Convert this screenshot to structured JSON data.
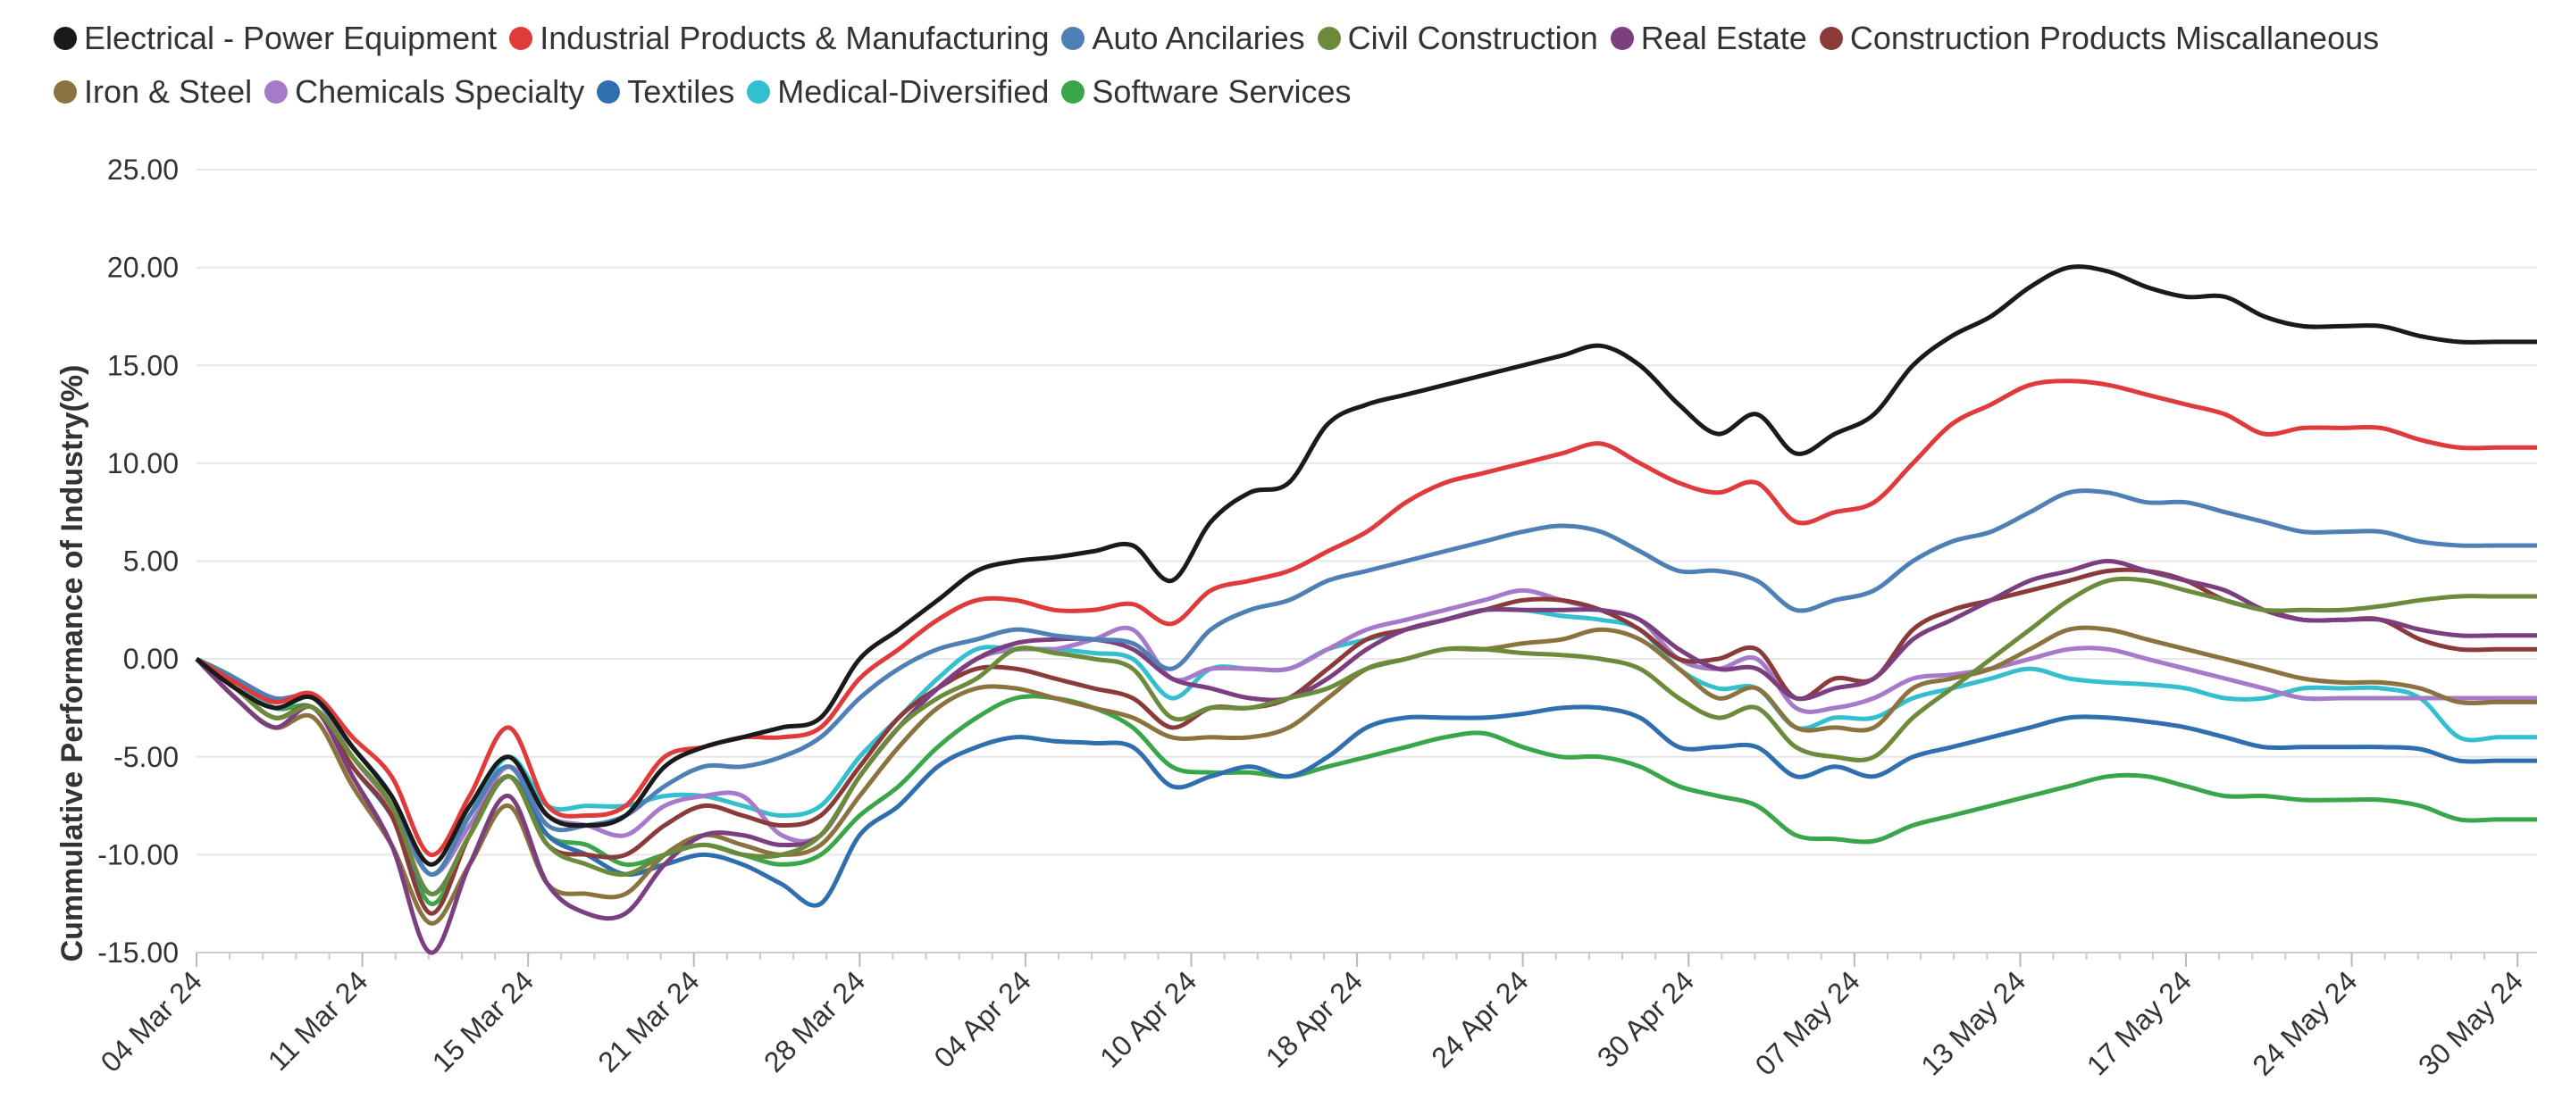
{
  "chart_data": {
    "type": "line",
    "title": "",
    "xlabel": "",
    "ylabel": "Cummulative Performance of Industry(%)",
    "ylim": [
      -15,
      25
    ],
    "yticks": [
      "25.00",
      "20.00",
      "15.00",
      "10.00",
      "5.00",
      "0.00",
      "-5.00",
      "-10.00",
      "-15.00"
    ],
    "ytick_values": [
      25,
      20,
      15,
      10,
      5,
      0,
      -5,
      -10,
      -15
    ],
    "x_range": [
      0,
      30
    ],
    "xtick_labels": [
      "04 Mar 24",
      "11 Mar 24",
      "15 Mar 24",
      "21 Mar 24",
      "28 Mar 24",
      "04 Apr 24",
      "10 Apr 24",
      "18 Apr 24",
      "24 Apr 24",
      "30 Apr 24",
      "07 May 24",
      "13 May 24",
      "17 May 24",
      "24 May 24",
      "30 May 24"
    ],
    "xtick_positions": [
      0,
      2.125,
      4.25,
      6.375,
      8.5,
      10.625,
      12.75,
      14.875,
      17,
      19.125,
      21.25,
      23.375,
      25.5,
      27.625,
      29.75
    ],
    "legend_position": "top",
    "x": [
      0,
      0.5,
      1,
      1.5,
      2,
      2.5,
      3,
      3.5,
      4,
      4.5,
      5,
      5.5,
      6,
      6.5,
      7,
      7.5,
      8,
      8.5,
      9,
      9.5,
      10,
      10.5,
      11,
      11.5,
      12,
      12.5,
      13,
      13.5,
      14,
      14.5,
      15,
      15.5,
      16,
      16.5,
      17,
      17.5,
      18,
      18.5,
      19,
      19.5,
      20,
      20.5,
      21,
      21.5,
      22,
      22.5,
      23,
      23.5,
      24,
      24.5,
      25,
      25.5,
      26,
      26.5,
      27,
      27.5,
      28,
      28.5,
      29,
      29.5,
      30
    ],
    "series": [
      {
        "name": "Electrical - Power Equipment",
        "color": "#1a1a1a",
        "values": [
          0,
          -1.5,
          -2.5,
          -2.0,
          -4.5,
          -7.0,
          -10.5,
          -7.5,
          -5.0,
          -8.0,
          -8.5,
          -8.0,
          -5.5,
          -4.5,
          -4.0,
          -3.5,
          -3.0,
          0,
          1.5,
          3.0,
          4.5,
          5.0,
          5.2,
          5.5,
          5.8,
          4.0,
          7.0,
          8.5,
          9.0,
          12.0,
          13.0,
          13.5,
          14.0,
          14.5,
          15.0,
          15.5,
          16.0,
          15.0,
          13.0,
          11.5,
          12.5,
          10.5,
          11.5,
          12.5,
          15.0,
          16.5,
          17.5,
          19.0,
          20.0,
          19.8,
          19.0,
          18.5,
          18.5,
          17.5,
          17.0,
          17.0,
          17.0,
          16.5,
          16.2,
          16.2,
          16.2
        ]
      },
      {
        "name": "Industrial Products & Manufacturing",
        "color": "#e03a3a",
        "values": [
          0,
          -1.2,
          -2.2,
          -1.8,
          -4.0,
          -6.0,
          -10.0,
          -7.0,
          -3.5,
          -7.5,
          -8.0,
          -7.5,
          -5.0,
          -4.5,
          -4.0,
          -4.0,
          -3.5,
          -1.0,
          0.5,
          2.0,
          3.0,
          3.0,
          2.5,
          2.5,
          2.8,
          1.8,
          3.5,
          4.0,
          4.5,
          5.5,
          6.5,
          8.0,
          9.0,
          9.5,
          10.0,
          10.5,
          11.0,
          10.0,
          9.0,
          8.5,
          9.0,
          7.0,
          7.5,
          8.0,
          10.0,
          12.0,
          13.0,
          14.0,
          14.2,
          14.0,
          13.5,
          13.0,
          12.5,
          11.5,
          11.8,
          11.8,
          11.8,
          11.2,
          10.8,
          10.8,
          10.8
        ]
      },
      {
        "name": "Auto Ancilaries",
        "color": "#4e7fb5",
        "values": [
          0,
          -1.0,
          -2.0,
          -2.0,
          -4.5,
          -7.0,
          -11.0,
          -8.0,
          -5.5,
          -8.5,
          -8.5,
          -8.0,
          -6.5,
          -5.5,
          -5.5,
          -5.0,
          -4.0,
          -2.0,
          -0.5,
          0.5,
          1.0,
          1.5,
          1.2,
          1.0,
          0.8,
          -0.5,
          1.5,
          2.5,
          3.0,
          4.0,
          4.5,
          5.0,
          5.5,
          6.0,
          6.5,
          6.8,
          6.5,
          5.5,
          4.5,
          4.5,
          4.0,
          2.5,
          3.0,
          3.5,
          5.0,
          6.0,
          6.5,
          7.5,
          8.5,
          8.5,
          8.0,
          8.0,
          7.5,
          7.0,
          6.5,
          6.5,
          6.5,
          6.0,
          5.8,
          5.8,
          5.8
        ]
      },
      {
        "name": "Civil Construction",
        "color": "#6b8a3a",
        "values": [
          0,
          -1.5,
          -3.0,
          -2.5,
          -5.0,
          -7.5,
          -12.0,
          -9.0,
          -6.0,
          -9.5,
          -10.5,
          -11.0,
          -10.0,
          -9.5,
          -10.0,
          -10.0,
          -9.0,
          -6.0,
          -3.5,
          -2.0,
          -1.0,
          0.5,
          0.3,
          0,
          -0.5,
          -3.0,
          -2.5,
          -2.5,
          -2.0,
          -1.5,
          -0.5,
          0,
          0.5,
          0.5,
          0.3,
          0.2,
          0,
          -0.5,
          -2.0,
          -3.0,
          -2.5,
          -4.5,
          -5.0,
          -5.0,
          -3.0,
          -1.5,
          0,
          1.5,
          3.0,
          4.0,
          4.0,
          3.5,
          3.0,
          2.5,
          2.5,
          2.5,
          2.7,
          3.0,
          3.2,
          3.2,
          3.2
        ]
      },
      {
        "name": "Real Estate",
        "color": "#7b3f7f",
        "values": [
          0,
          -2.0,
          -3.5,
          -2.5,
          -6.0,
          -9.5,
          -15.0,
          -10.5,
          -7.0,
          -11.5,
          -13.0,
          -13.0,
          -10.5,
          -9.0,
          -9.0,
          -9.5,
          -9.0,
          -6.0,
          -3.5,
          -1.5,
          0,
          0.8,
          1.0,
          1.0,
          0.5,
          -1.0,
          -1.5,
          -2.0,
          -2.0,
          -1.0,
          0.5,
          1.5,
          2.0,
          2.5,
          2.5,
          2.5,
          2.5,
          2.0,
          0.5,
          -0.5,
          -0.5,
          -2.0,
          -1.5,
          -1.0,
          1.0,
          2.0,
          3.0,
          4.0,
          4.5,
          5.0,
          4.5,
          4.0,
          3.5,
          2.5,
          2.0,
          2.0,
          2.0,
          1.5,
          1.2,
          1.2,
          1.2
        ]
      },
      {
        "name": "Construction Products Miscallaneous",
        "color": "#8b3a3a",
        "values": [
          0,
          -1.5,
          -3.0,
          -2.5,
          -5.5,
          -8.0,
          -13.0,
          -9.0,
          -6.0,
          -9.5,
          -10.0,
          -10.0,
          -8.5,
          -7.5,
          -8.0,
          -8.5,
          -8.0,
          -5.5,
          -3.0,
          -1.5,
          -0.5,
          -0.5,
          -1.0,
          -1.5,
          -2.0,
          -3.5,
          -2.5,
          -2.5,
          -2.0,
          -0.5,
          1.0,
          1.5,
          2.0,
          2.5,
          3.0,
          3.0,
          2.5,
          1.5,
          0,
          0,
          0.5,
          -2.0,
          -1.0,
          -1.0,
          1.5,
          2.5,
          3.0,
          3.5,
          4.0,
          4.5,
          4.5,
          4.0,
          3.0,
          2.5,
          2.0,
          2.0,
          2.0,
          1.0,
          0.5,
          0.5,
          0.5
        ]
      },
      {
        "name": "Iron & Steel",
        "color": "#8b7340",
        "values": [
          0,
          -2.0,
          -3.5,
          -3.0,
          -6.5,
          -9.5,
          -13.5,
          -10.5,
          -7.5,
          -11.5,
          -12.0,
          -12.0,
          -10.0,
          -9.0,
          -9.5,
          -10.0,
          -9.5,
          -7.0,
          -4.5,
          -2.5,
          -1.5,
          -1.5,
          -2.0,
          -2.5,
          -3.0,
          -4.0,
          -4.0,
          -4.0,
          -3.5,
          -2.0,
          -0.5,
          0,
          0.5,
          0.5,
          0.8,
          1.0,
          1.5,
          1.0,
          -0.5,
          -2.0,
          -1.5,
          -3.5,
          -3.5,
          -3.5,
          -1.5,
          -1.0,
          -0.5,
          0.5,
          1.5,
          1.5,
          1.0,
          0.5,
          0,
          -0.5,
          -1.0,
          -1.2,
          -1.2,
          -1.5,
          -2.2,
          -2.2,
          -2.2
        ]
      },
      {
        "name": "Chemicals Specialty",
        "color": "#a57ac8",
        "values": [
          0,
          -1.5,
          -2.5,
          -2.0,
          -5.0,
          -7.5,
          -11.0,
          -8.5,
          -5.5,
          -8.0,
          -8.5,
          -9.0,
          -7.5,
          -7.0,
          -7.0,
          -9.0,
          -9.0,
          -6.0,
          -3.5,
          -1.5,
          0,
          0.5,
          0.5,
          1.0,
          1.5,
          -1.0,
          -0.5,
          -0.5,
          -0.5,
          0.5,
          1.5,
          2.0,
          2.5,
          3.0,
          3.5,
          3.0,
          2.5,
          2.0,
          0,
          -0.5,
          0,
          -2.5,
          -2.5,
          -2.0,
          -1.0,
          -0.8,
          -0.5,
          0,
          0.5,
          0.5,
          0,
          -0.5,
          -1.0,
          -1.5,
          -2.0,
          -2.0,
          -2.0,
          -2.0,
          -2.0,
          -2.0,
          -2.0
        ]
      },
      {
        "name": "Textiles",
        "color": "#2f6fb0",
        "values": [
          0,
          -1.5,
          -3.0,
          -2.5,
          -5.5,
          -8.0,
          -12.0,
          -9.0,
          -6.0,
          -9.0,
          -10.0,
          -11.0,
          -10.5,
          -10.0,
          -10.5,
          -11.5,
          -12.5,
          -9.0,
          -7.5,
          -5.5,
          -4.5,
          -4.0,
          -4.2,
          -4.3,
          -4.5,
          -6.5,
          -6.0,
          -5.5,
          -6.0,
          -5.0,
          -3.5,
          -3.0,
          -3.0,
          -3.0,
          -2.8,
          -2.5,
          -2.5,
          -3.0,
          -4.5,
          -4.5,
          -4.5,
          -6.0,
          -5.5,
          -6.0,
          -5.0,
          -4.5,
          -4.0,
          -3.5,
          -3.0,
          -3.0,
          -3.2,
          -3.5,
          -4.0,
          -4.5,
          -4.5,
          -4.5,
          -4.5,
          -4.6,
          -5.2,
          -5.2,
          -5.2
        ]
      },
      {
        "name": "Medical-Diversified",
        "color": "#34bfcf",
        "values": [
          0,
          -1.2,
          -2.5,
          -2.0,
          -4.5,
          -7.0,
          -11.0,
          -8.0,
          -5.0,
          -7.5,
          -7.5,
          -7.5,
          -7.0,
          -7.0,
          -7.5,
          -8.0,
          -7.5,
          -5.0,
          -3.0,
          -1.0,
          0.5,
          0.5,
          0.5,
          0.3,
          0,
          -2.0,
          -0.5,
          -0.5,
          -0.5,
          0.5,
          1.0,
          1.5,
          2.0,
          2.5,
          2.5,
          2.2,
          2.0,
          1.5,
          -0.5,
          -1.5,
          -1.5,
          -3.5,
          -3.0,
          -3.0,
          -2.0,
          -1.5,
          -1.0,
          -0.5,
          -1.0,
          -1.2,
          -1.3,
          -1.5,
          -2.0,
          -2.0,
          -1.5,
          -1.5,
          -1.5,
          -2.0,
          -4.0,
          -4.0,
          -4.0
        ]
      },
      {
        "name": "Software Services",
        "color": "#3aa64a",
        "values": [
          0,
          -1.0,
          -2.5,
          -2.5,
          -5.0,
          -7.5,
          -12.5,
          -9.0,
          -6.0,
          -9.0,
          -9.5,
          -10.5,
          -10.0,
          -9.5,
          -10.0,
          -10.5,
          -10.0,
          -8.0,
          -6.5,
          -4.5,
          -3.0,
          -2.0,
          -2.0,
          -2.5,
          -3.5,
          -5.5,
          -5.8,
          -5.8,
          -6.0,
          -5.5,
          -5.0,
          -4.5,
          -4.0,
          -3.8,
          -4.5,
          -5.0,
          -5.0,
          -5.5,
          -6.5,
          -7.0,
          -7.5,
          -9.0,
          -9.2,
          -9.3,
          -8.5,
          -8.0,
          -7.5,
          -7.0,
          -6.5,
          -6.0,
          -6.0,
          -6.5,
          -7.0,
          -7.0,
          -7.2,
          -7.2,
          -7.2,
          -7.5,
          -8.2,
          -8.2,
          -8.2
        ]
      }
    ]
  }
}
